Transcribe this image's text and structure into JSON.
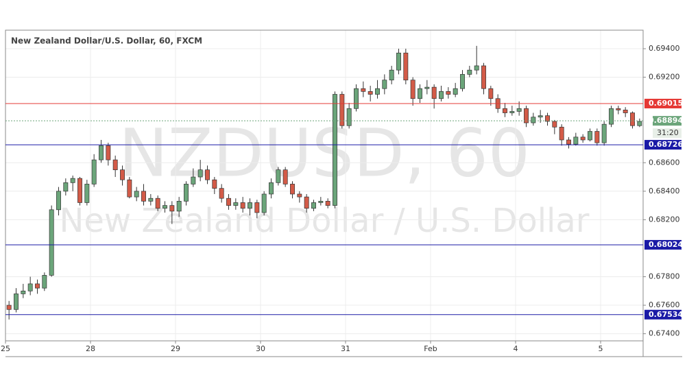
{
  "chart_data": {
    "type": "candlestick",
    "title": "New Zealand Dollar/U.S. Dollar, 60, FXCM",
    "watermark": [
      "NZDUSD, 60",
      "New Zealand Dollar / U.S. Dollar"
    ],
    "countdown": "31:20",
    "up_color": "#6ba57a",
    "down_color": "#d35b48",
    "open": [
      0.676,
      0.6757,
      0.6768,
      0.677,
      0.6775,
      0.6772,
      0.6781,
      0.6827,
      0.684,
      0.6846,
      0.6849,
      0.6832,
      0.6845,
      0.6862,
      0.6872,
      0.6862,
      0.6855,
      0.6848,
      0.6836,
      0.684,
      0.6833,
      0.6835,
      0.6828,
      0.683,
      0.6826,
      0.6833,
      0.6845,
      0.685,
      0.6855,
      0.6848,
      0.6842,
      0.6835,
      0.683,
      0.6832,
      0.6828,
      0.6832,
      0.6825,
      0.6838,
      0.6846,
      0.6855,
      0.6845,
      0.6838,
      0.6836,
      0.6828,
      0.6832,
      0.6833,
      0.683,
      0.6908,
      0.6886,
      0.6898,
      0.6912,
      0.691,
      0.6908,
      0.6912,
      0.6918,
      0.6925,
      0.6937,
      0.6918,
      0.6905,
      0.6912,
      0.6913,
      0.6905,
      0.691,
      0.6908,
      0.6912,
      0.6922,
      0.6925,
      0.6928,
      0.6912,
      0.6905,
      0.6898,
      0.6895,
      0.6896,
      0.6898,
      0.6888,
      0.6892,
      0.6893,
      0.6889,
      0.6885,
      0.6876,
      0.6873,
      0.6878,
      0.6876,
      0.6882,
      0.6874,
      0.6887,
      0.6898,
      0.6897,
      0.6895,
      0.6886
    ],
    "high": [
      0.6763,
      0.6772,
      0.6775,
      0.678,
      0.6778,
      0.6783,
      0.683,
      0.6843,
      0.6849,
      0.6851,
      0.685,
      0.6848,
      0.6866,
      0.6876,
      0.6874,
      0.6865,
      0.6858,
      0.685,
      0.6843,
      0.6845,
      0.6838,
      0.6837,
      0.6833,
      0.6833,
      0.6836,
      0.6847,
      0.6856,
      0.6862,
      0.6858,
      0.685,
      0.6845,
      0.6838,
      0.6835,
      0.6836,
      0.6835,
      0.6834,
      0.684,
      0.6849,
      0.6857,
      0.6857,
      0.6847,
      0.684,
      0.6838,
      0.6834,
      0.6836,
      0.6835,
      0.691,
      0.691,
      0.6902,
      0.6915,
      0.6917,
      0.6914,
      0.6918,
      0.6922,
      0.6928,
      0.694,
      0.694,
      0.692,
      0.6915,
      0.6918,
      0.6915,
      0.6914,
      0.6913,
      0.6916,
      0.6925,
      0.6928,
      0.6942,
      0.693,
      0.6914,
      0.6908,
      0.6902,
      0.69,
      0.6903,
      0.69,
      0.6895,
      0.6897,
      0.6895,
      0.689,
      0.6887,
      0.6878,
      0.6881,
      0.688,
      0.6884,
      0.6884,
      0.6889,
      0.69,
      0.69,
      0.6899,
      0.6896,
      0.6891
    ],
    "low": [
      0.675,
      0.6755,
      0.6765,
      0.6767,
      0.6768,
      0.677,
      0.678,
      0.6823,
      0.6837,
      0.684,
      0.683,
      0.683,
      0.6843,
      0.686,
      0.6858,
      0.685,
      0.6844,
      0.6835,
      0.6833,
      0.683,
      0.683,
      0.6826,
      0.6825,
      0.6817,
      0.6822,
      0.683,
      0.6843,
      0.6847,
      0.6845,
      0.6838,
      0.6832,
      0.6827,
      0.6827,
      0.6825,
      0.6823,
      0.6821,
      0.6823,
      0.6835,
      0.6844,
      0.6843,
      0.6835,
      0.6832,
      0.6825,
      0.6826,
      0.683,
      0.6828,
      0.6828,
      0.6884,
      0.6884,
      0.6896,
      0.6906,
      0.6903,
      0.6905,
      0.6908,
      0.6915,
      0.6922,
      0.6915,
      0.69,
      0.6902,
      0.6908,
      0.6898,
      0.6903,
      0.6905,
      0.6906,
      0.691,
      0.692,
      0.6922,
      0.6908,
      0.69,
      0.6895,
      0.6892,
      0.6893,
      0.6893,
      0.6885,
      0.6886,
      0.6888,
      0.6886,
      0.688,
      0.6872,
      0.687,
      0.6872,
      0.6874,
      0.6875,
      0.6872,
      0.6872,
      0.6885,
      0.6894,
      0.6892,
      0.6884,
      0.6885
    ],
    "close": [
      0.6757,
      0.6768,
      0.677,
      0.6775,
      0.6772,
      0.6781,
      0.6827,
      0.684,
      0.6846,
      0.6849,
      0.6832,
      0.6845,
      0.6862,
      0.6872,
      0.6862,
      0.6855,
      0.6848,
      0.6836,
      0.684,
      0.6833,
      0.6835,
      0.6828,
      0.683,
      0.6826,
      0.6833,
      0.6845,
      0.685,
      0.6855,
      0.6848,
      0.6842,
      0.6835,
      0.683,
      0.6832,
      0.6828,
      0.6832,
      0.6825,
      0.6838,
      0.6846,
      0.6855,
      0.6845,
      0.6838,
      0.6836,
      0.6828,
      0.6832,
      0.6833,
      0.683,
      0.6908,
      0.6886,
      0.6898,
      0.6912,
      0.691,
      0.6908,
      0.6912,
      0.6918,
      0.6925,
      0.6937,
      0.6918,
      0.6905,
      0.6912,
      0.6913,
      0.6905,
      0.691,
      0.6908,
      0.6912,
      0.6922,
      0.6925,
      0.6928,
      0.6912,
      0.6905,
      0.6898,
      0.6895,
      0.6896,
      0.6898,
      0.6888,
      0.6892,
      0.6893,
      0.6889,
      0.6885,
      0.6876,
      0.6873,
      0.6878,
      0.6876,
      0.6882,
      0.6874,
      0.6887,
      0.6898,
      0.6897,
      0.6895,
      0.6886,
      0.6889
    ],
    "xlim": [
      0,
      90
    ],
    "xticks": [
      {
        "value": 0,
        "label": "25"
      },
      {
        "value": 12,
        "label": "28"
      },
      {
        "value": 24,
        "label": "29"
      },
      {
        "value": 36,
        "label": "30"
      },
      {
        "value": 48,
        "label": "31"
      },
      {
        "value": 60,
        "label": "Feb"
      },
      {
        "value": 72,
        "label": "4"
      },
      {
        "value": 84,
        "label": "5"
      }
    ],
    "ylim": [
      0.6735,
      0.6953
    ],
    "yticks": [
      {
        "value": 0.694,
        "label": "0.69400"
      },
      {
        "value": 0.692,
        "label": "0.69200"
      },
      {
        "value": 0.686,
        "label": "0.68600"
      },
      {
        "value": 0.684,
        "label": "0.68400"
      },
      {
        "value": 0.682,
        "label": "0.68200"
      },
      {
        "value": 0.678,
        "label": "0.67800"
      },
      {
        "value": 0.676,
        "label": "0.67600"
      },
      {
        "value": 0.674,
        "label": "0.67400"
      }
    ],
    "grid": true,
    "levels": [
      {
        "value": 0.69015,
        "color": "#e53935"
      },
      {
        "value": 0.68726,
        "color": "#1a1aa6"
      },
      {
        "value": 0.68024,
        "color": "#1a1aa6"
      },
      {
        "value": 0.67534,
        "color": "#1a1aa6"
      }
    ],
    "last_price": {
      "value": 0.68894,
      "color": "#6ba57a"
    }
  }
}
